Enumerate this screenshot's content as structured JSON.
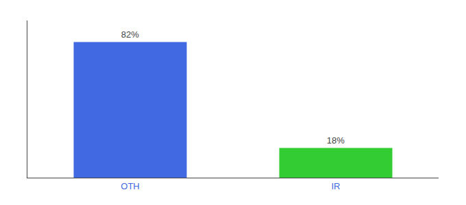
{
  "chart_data": {
    "type": "bar",
    "categories": [
      "OTH",
      "IR"
    ],
    "values": [
      82,
      18
    ],
    "value_labels": [
      "82%",
      "18%"
    ],
    "colors": [
      "#4169e1",
      "#33cc33"
    ],
    "data_labels": true,
    "ylim": [
      0,
      95
    ],
    "tick_labels": "x",
    "grid": false
  }
}
